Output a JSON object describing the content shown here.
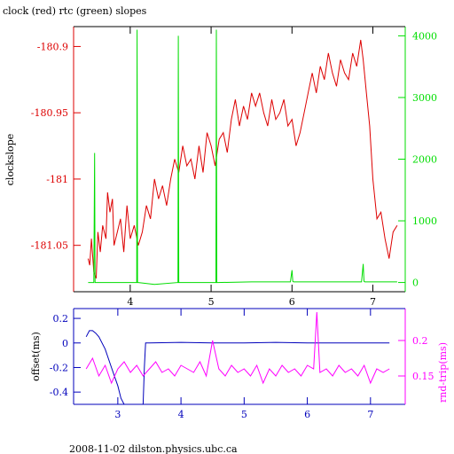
{
  "title": "clock (red) rtc (green) slopes",
  "footer": "2008-11-02  dilston.physics.ubc.ca",
  "colors": {
    "red": "#dd0000",
    "green": "#00dd00",
    "blue": "#0000bb",
    "magenta": "#ff00ff",
    "axis_dark": "#000000"
  },
  "chart_data": [
    {
      "type": "line",
      "ylabel": "clockslope",
      "x_ticks": [
        "4",
        "5",
        "6",
        "7"
      ],
      "x_tick_values": [
        4,
        5,
        6,
        7
      ],
      "xlim": [
        3.3,
        7.4
      ],
      "ylim_left": [
        -181.085,
        -180.885
      ],
      "y_ticks_left": [
        "-180.9",
        "-180.95",
        "-181",
        "-181.05"
      ],
      "y_tick_values_left": [
        -180.9,
        -180.95,
        -181,
        -181.05
      ],
      "ylim_right": [
        -150,
        4150
      ],
      "y_ticks_right": [
        "4000",
        "3000",
        "2000",
        "1000",
        "0"
      ],
      "y_tick_values_right": [
        4000,
        3000,
        2000,
        1000,
        0
      ],
      "series": [
        {
          "axis": "left",
          "color": "red",
          "x": [
            3.48,
            3.5,
            3.52,
            3.55,
            3.58,
            3.6,
            3.63,
            3.66,
            3.7,
            3.72,
            3.75,
            3.78,
            3.8,
            3.84,
            3.88,
            3.92,
            3.96,
            4.0,
            4.05,
            4.1,
            4.15,
            4.2,
            4.25,
            4.3,
            4.35,
            4.4,
            4.45,
            4.5,
            4.55,
            4.6,
            4.65,
            4.7,
            4.75,
            4.8,
            4.85,
            4.9,
            4.95,
            5.0,
            5.05,
            5.1,
            5.15,
            5.2,
            5.25,
            5.3,
            5.35,
            5.4,
            5.45,
            5.5,
            5.55,
            5.6,
            5.65,
            5.7,
            5.75,
            5.8,
            5.85,
            5.9,
            5.95,
            6.0,
            6.05,
            6.1,
            6.15,
            6.2,
            6.25,
            6.3,
            6.35,
            6.4,
            6.45,
            6.5,
            6.55,
            6.6,
            6.65,
            6.7,
            6.75,
            6.8,
            6.85,
            6.88,
            6.92,
            6.96,
            7.0,
            7.05,
            7.1,
            7.15,
            7.2,
            7.25,
            7.3
          ],
          "values": [
            -181.06,
            -181.065,
            -181.045,
            -181.07,
            -181.075,
            -181.04,
            -181.055,
            -181.035,
            -181.045,
            -181.01,
            -181.025,
            -181.015,
            -181.05,
            -181.04,
            -181.03,
            -181.055,
            -181.02,
            -181.045,
            -181.035,
            -181.05,
            -181.04,
            -181.02,
            -181.03,
            -181.0,
            -181.015,
            -181.005,
            -181.02,
            -181.0,
            -180.985,
            -180.995,
            -180.975,
            -180.99,
            -180.985,
            -181.0,
            -180.975,
            -180.995,
            -180.965,
            -180.975,
            -180.99,
            -180.97,
            -180.965,
            -180.98,
            -180.955,
            -180.94,
            -180.96,
            -180.945,
            -180.955,
            -180.935,
            -180.945,
            -180.935,
            -180.95,
            -180.96,
            -180.94,
            -180.955,
            -180.95,
            -180.94,
            -180.96,
            -180.955,
            -180.975,
            -180.965,
            -180.95,
            -180.935,
            -180.92,
            -180.935,
            -180.915,
            -180.925,
            -180.905,
            -180.92,
            -180.93,
            -180.91,
            -180.92,
            -180.925,
            -180.905,
            -180.915,
            -180.895,
            -180.91,
            -180.935,
            -180.96,
            -181.0,
            -181.03,
            -181.025,
            -181.045,
            -181.06,
            -181.04,
            -181.035
          ]
        },
        {
          "axis": "right",
          "color": "green",
          "x": [
            3.48,
            3.55,
            3.56,
            3.565,
            3.57,
            3.58,
            4.0,
            4.08,
            4.085,
            4.09,
            4.1,
            4.3,
            4.59,
            4.595,
            4.6,
            4.61,
            5.06,
            5.065,
            5.07,
            5.08,
            5.5,
            5.98,
            6.0,
            6.01,
            6.02,
            6.5,
            6.86,
            6.88,
            6.89,
            6.9,
            7.3
          ],
          "values": [
            0,
            0,
            2100,
            0,
            0,
            0,
            0,
            0,
            4100,
            0,
            0,
            -30,
            0,
            4000,
            0,
            0,
            0,
            4100,
            0,
            0,
            10,
            10,
            200,
            20,
            10,
            10,
            10,
            300,
            20,
            10,
            10
          ]
        }
      ]
    },
    {
      "type": "line",
      "ylabel_left": "offset(ms)",
      "ylabel_right": "rnd-trip(ms)",
      "x_ticks": [
        "3",
        "4",
        "5",
        "6",
        "7"
      ],
      "x_tick_values": [
        3,
        4,
        5,
        6,
        7
      ],
      "xlim": [
        2.3,
        7.55
      ],
      "ylim_left": [
        -0.5,
        0.28
      ],
      "y_ticks_left": [
        "0.2",
        "0",
        "-0.2",
        "-0.4"
      ],
      "y_tick_values_left": [
        0.2,
        0,
        -0.2,
        -0.4
      ],
      "ylim_right": [
        0.11,
        0.245
      ],
      "y_ticks_right": [
        "0.2",
        "0.15"
      ],
      "y_tick_values_right": [
        0.2,
        0.15
      ],
      "series": [
        {
          "axis": "left",
          "color": "blue",
          "x": [
            2.5,
            2.55,
            2.6,
            2.65,
            2.7,
            2.8,
            2.9,
            3.0,
            3.05,
            3.1,
            3.3,
            3.4,
            3.42,
            3.44,
            3.5,
            4.0,
            4.5,
            5.0,
            5.5,
            6.0,
            6.5,
            7.0,
            7.3
          ],
          "values": [
            0.05,
            0.1,
            0.1,
            0.08,
            0.05,
            -0.05,
            -0.2,
            -0.35,
            -0.45,
            -0.5,
            -0.5,
            -0.5,
            -0.2,
            0.0,
            0.0,
            0.005,
            0.0,
            0.0,
            0.005,
            0.0,
            0.0,
            0.0,
            0.0
          ]
        },
        {
          "axis": "right",
          "color": "magenta",
          "x": [
            2.5,
            2.6,
            2.7,
            2.8,
            2.9,
            3.0,
            3.1,
            3.2,
            3.3,
            3.4,
            3.5,
            3.6,
            3.7,
            3.8,
            3.9,
            4.0,
            4.1,
            4.2,
            4.3,
            4.4,
            4.5,
            4.6,
            4.7,
            4.8,
            4.9,
            5.0,
            5.1,
            5.2,
            5.3,
            5.4,
            5.5,
            5.6,
            5.7,
            5.8,
            5.9,
            6.0,
            6.1,
            6.15,
            6.2,
            6.3,
            6.4,
            6.5,
            6.6,
            6.7,
            6.8,
            6.9,
            7.0,
            7.1,
            7.2,
            7.3
          ],
          "values": [
            0.16,
            0.175,
            0.15,
            0.165,
            0.14,
            0.16,
            0.17,
            0.155,
            0.165,
            0.15,
            0.16,
            0.17,
            0.155,
            0.16,
            0.15,
            0.165,
            0.16,
            0.155,
            0.17,
            0.15,
            0.2,
            0.16,
            0.15,
            0.165,
            0.155,
            0.16,
            0.15,
            0.165,
            0.14,
            0.16,
            0.15,
            0.165,
            0.155,
            0.16,
            0.15,
            0.165,
            0.16,
            0.24,
            0.155,
            0.16,
            0.15,
            0.165,
            0.155,
            0.16,
            0.15,
            0.165,
            0.14,
            0.16,
            0.155,
            0.16
          ]
        }
      ]
    }
  ]
}
